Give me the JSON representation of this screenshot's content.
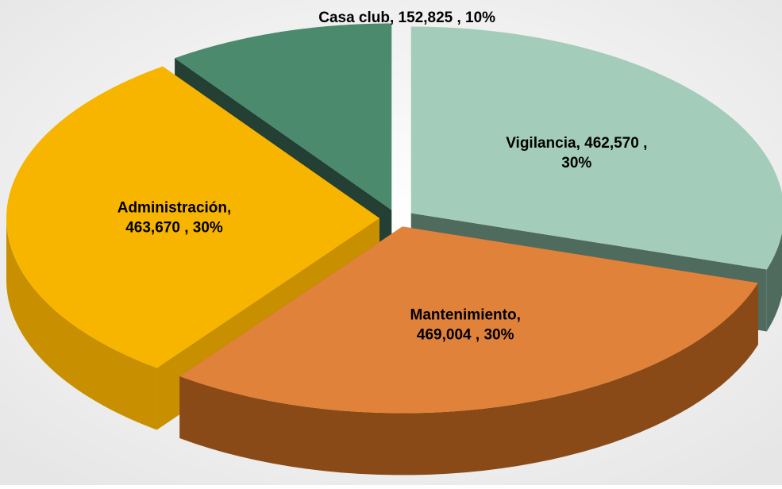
{
  "chart_data": {
    "type": "pie",
    "values": [
      462570,
      469004,
      463670,
      152825
    ],
    "value_labels": [
      "Vigilancia,  462,570 ,\n30%",
      "Mantenimiento,\n469,004 , 30%",
      "Administración,\n463,670 , 30%",
      "Casa club, 152,825 , 10%"
    ],
    "colors": [
      "#a3ccba",
      "#e0823a",
      "#f7b500",
      "#4b8a6d"
    ],
    "side_colors": [
      "#4f6b5e",
      "#8a4a18",
      "#c89000",
      "#243f33"
    ]
  }
}
